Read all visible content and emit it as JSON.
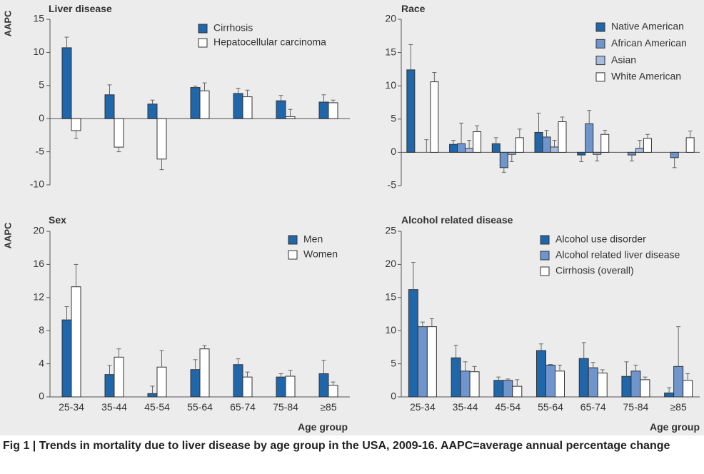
{
  "colors": {
    "background": "#ececec",
    "dark_blue": "#1f66aa",
    "medium_blue": "#6f95cd",
    "light_blue": "#a7bde0",
    "white": "#ffffff",
    "error_bar": "#666666"
  },
  "caption": "Fig 1 | Trends in mortality due to liver disease by age group in the USA, 2009-16. AAPC=average annual percentage change",
  "chart_data": [
    {
      "type": "bar",
      "title": "Liver disease",
      "ylabel": "AAPC",
      "xlabel": "",
      "ylim": [
        -10,
        15
      ],
      "yticks": [
        -10,
        -5,
        0,
        5,
        10,
        15
      ],
      "ytick_labels": [
        "-10",
        "-5",
        "0",
        "5",
        "10",
        "15"
      ],
      "categories": [
        "25-34",
        "35-44",
        "45-54",
        "55-64",
        "65-74",
        "75-84",
        "≥85"
      ],
      "show_category_labels": false,
      "series": [
        {
          "name": "Cirrhosis",
          "color": "#1f66aa",
          "values": [
            10.7,
            3.6,
            2.2,
            4.7,
            3.8,
            2.7,
            2.5
          ],
          "err_tip": [
            12.3,
            5.1,
            2.8,
            4.9,
            4.6,
            3.5,
            3.6
          ]
        },
        {
          "name": "Hepatocellular carcinoma",
          "color": "#ffffff",
          "values": [
            -1.8,
            -4.3,
            -6.1,
            4.2,
            3.3,
            0.3,
            2.4
          ],
          "err_tip": [
            -3.0,
            -5.0,
            -7.7,
            5.4,
            4.3,
            1.4,
            2.8
          ]
        }
      ]
    },
    {
      "type": "bar",
      "title": "Race",
      "ylabel": "",
      "xlabel": "",
      "ylim": [
        -5,
        20
      ],
      "yticks": [
        -5,
        0,
        5,
        10,
        15,
        20
      ],
      "ytick_labels": [
        "-5",
        "0",
        "5",
        "10",
        "15",
        "20"
      ],
      "categories": [
        "25-34",
        "35-44",
        "45-54",
        "55-64",
        "65-74",
        "75-84",
        "≥85"
      ],
      "show_category_labels": false,
      "series": [
        {
          "name": "Native American",
          "color": "#1f66aa",
          "values": [
            12.4,
            1.2,
            1.3,
            3.0,
            -0.4,
            null,
            null
          ],
          "err_tip": [
            16.2,
            1.8,
            2.2,
            5.9,
            -1.4,
            null,
            null
          ]
        },
        {
          "name": "African American",
          "color": "#6f95cd",
          "values": [
            null,
            1.3,
            -2.3,
            2.3,
            4.3,
            -0.4,
            -0.8
          ],
          "err_tip": [
            null,
            4.4,
            -3.0,
            3.3,
            6.3,
            -1.3,
            -2.3
          ]
        },
        {
          "name": "Asian",
          "color": "#a7bde0",
          "values": [
            null,
            0.6,
            -0.3,
            0.8,
            -0.3,
            0.6,
            null
          ],
          "err_tip": [
            1.9,
            1.8,
            -1.4,
            1.8,
            -1.3,
            1.8,
            null
          ]
        },
        {
          "name": "White American",
          "color": "#ffffff",
          "values": [
            10.6,
            3.1,
            2.2,
            4.6,
            2.7,
            2.1,
            2.2
          ],
          "err_tip": [
            12.0,
            4.0,
            3.5,
            5.3,
            3.3,
            2.7,
            3.2
          ]
        }
      ]
    },
    {
      "type": "bar",
      "title": "Sex",
      "ylabel": "AAPC",
      "xlabel": "Age group",
      "ylim": [
        0,
        20
      ],
      "yticks": [
        0,
        4,
        8,
        12,
        16,
        20
      ],
      "ytick_labels": [
        "0",
        "4",
        "8",
        "12",
        "16",
        "20"
      ],
      "categories": [
        "25-34",
        "35-44",
        "45-54",
        "55-64",
        "65-74",
        "75-84",
        "≥85"
      ],
      "show_category_labels": true,
      "series": [
        {
          "name": "Men",
          "color": "#1f66aa",
          "values": [
            9.3,
            2.7,
            0.4,
            3.3,
            3.9,
            2.4,
            2.8
          ],
          "err_tip": [
            10.9,
            3.8,
            1.3,
            4.5,
            4.6,
            2.8,
            4.4
          ]
        },
        {
          "name": "Women",
          "color": "#ffffff",
          "values": [
            13.3,
            4.8,
            3.6,
            5.8,
            2.4,
            2.5,
            1.4
          ],
          "err_tip": [
            16.0,
            5.8,
            5.6,
            6.2,
            3.0,
            3.2,
            1.8
          ]
        }
      ]
    },
    {
      "type": "bar",
      "title": "Alcohol related disease",
      "ylabel": "",
      "xlabel": "Age group",
      "ylim": [
        0,
        25
      ],
      "yticks": [
        0,
        5,
        10,
        15,
        20,
        25
      ],
      "ytick_labels": [
        "0",
        "5",
        "10",
        "15",
        "20",
        "25"
      ],
      "categories": [
        "25-34",
        "35-44",
        "45-54",
        "55-64",
        "65-74",
        "75-84",
        "≥85"
      ],
      "show_category_labels": true,
      "series": [
        {
          "name": "Alcohol use disorder",
          "color": "#1f66aa",
          "values": [
            16.2,
            5.9,
            2.5,
            7.0,
            5.8,
            3.1,
            0.6
          ],
          "err_tip": [
            20.3,
            7.8,
            3.0,
            8.0,
            8.2,
            5.3,
            1.4
          ]
        },
        {
          "name": "Alcohol related liver disease",
          "color": "#6f95cd",
          "values": [
            10.6,
            3.9,
            2.5,
            4.8,
            4.4,
            3.9,
            4.6
          ],
          "err_tip": [
            11.3,
            5.3,
            2.7,
            4.9,
            5.2,
            4.8,
            10.6
          ]
        },
        {
          "name": "Cirrhosis (overall)",
          "color": "#ffffff",
          "values": [
            10.6,
            3.8,
            1.6,
            3.9,
            3.6,
            2.6,
            2.5
          ],
          "err_tip": [
            11.8,
            4.6,
            2.6,
            4.8,
            4.1,
            3.0,
            3.5
          ]
        }
      ]
    }
  ]
}
